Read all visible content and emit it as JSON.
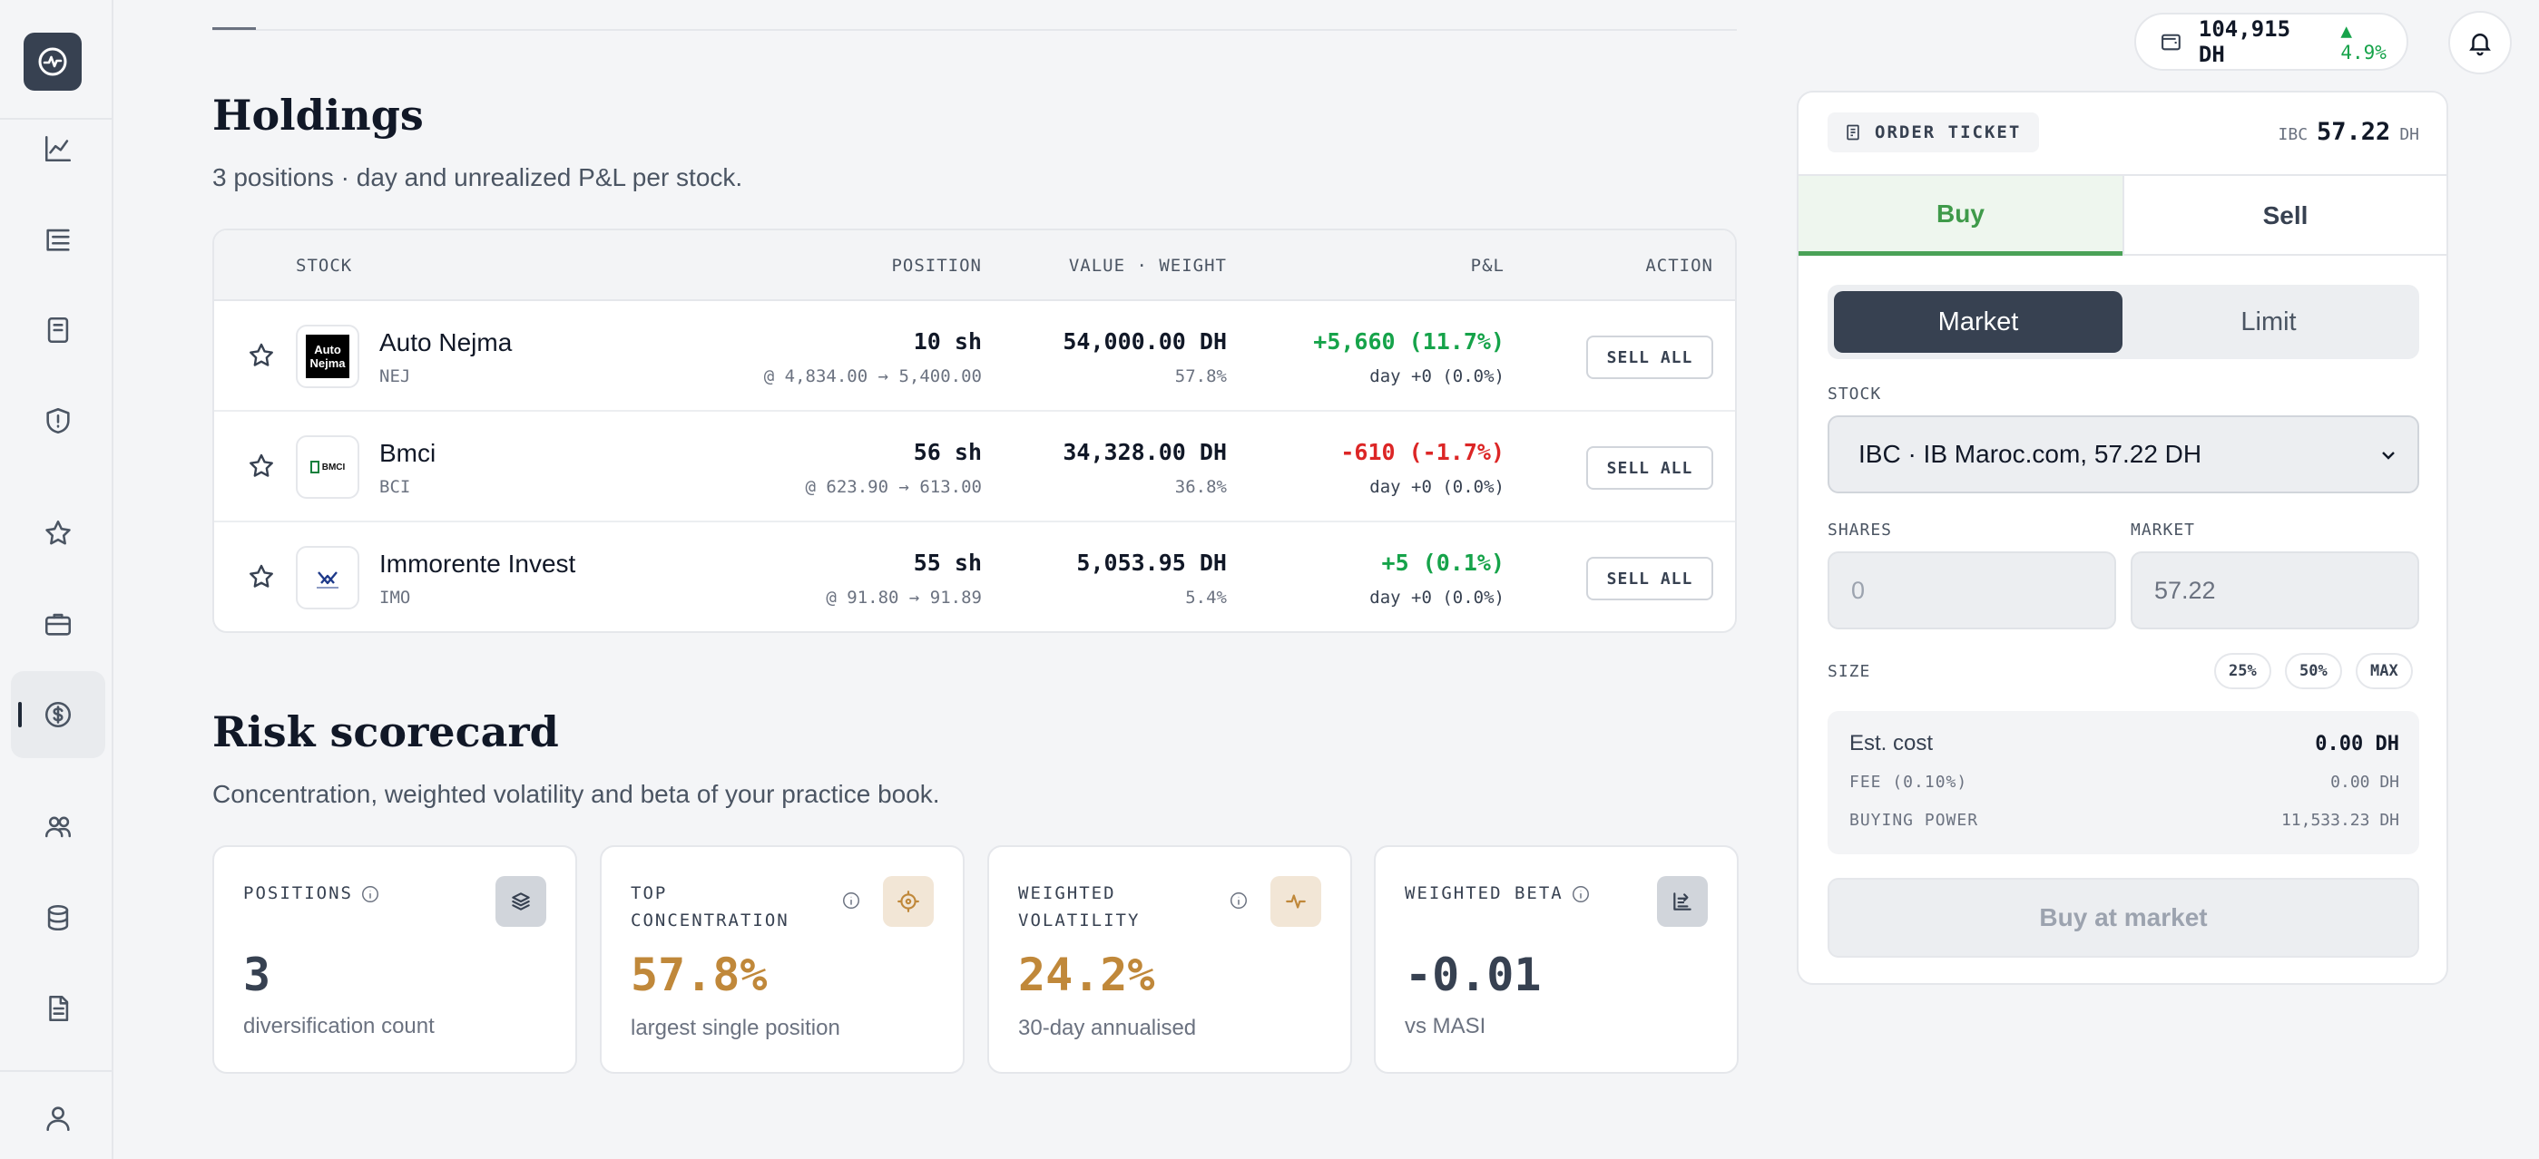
{
  "topbar": {
    "wallet_amount": "104,915 DH",
    "wallet_change": "▲ 4.9%"
  },
  "sidebar": {
    "items": [
      {
        "icon": "chart-line-icon"
      },
      {
        "icon": "list-tree-icon"
      },
      {
        "icon": "document-icon"
      },
      {
        "icon": "shield-alert-icon"
      },
      {
        "icon": "star-icon"
      },
      {
        "icon": "briefcase-icon"
      },
      {
        "icon": "dollar-circle-icon",
        "active": true
      },
      {
        "icon": "users-icon"
      },
      {
        "icon": "database-icon"
      },
      {
        "icon": "file-text-icon"
      },
      {
        "icon": "user-icon"
      }
    ]
  },
  "holdings": {
    "title": "Holdings",
    "subtitle": "3 positions · day and unrealized P&L per stock.",
    "columns": {
      "stock": "STOCK",
      "position": "POSITION",
      "value": "VALUE · WEIGHT",
      "pnl": "P&L",
      "action": "ACTION"
    },
    "rows": [
      {
        "name": "Auto Nejma",
        "ticker": "NEJ",
        "logo_text_1": "Auto",
        "logo_text_2": "Nejma",
        "shares": "10 sh",
        "price_detail": "@ 4,834.00 → 5,400.00",
        "value": "54,000.00 DH",
        "weight": "57.8%",
        "pnl": "+5,660 (11.7%)",
        "pnl_color": "#16a34a",
        "day": "day +0 (0.0%)",
        "action": "SELL ALL"
      },
      {
        "name": "Bmci",
        "ticker": "BCI",
        "logo_text_1": "BMCI",
        "shares": "56 sh",
        "price_detail": "@ 623.90 → 613.00",
        "value": "34,328.00 DH",
        "weight": "36.8%",
        "pnl": "-610 (-1.7%)",
        "pnl_color": "#dc2626",
        "day": "day +0 (0.0%)",
        "action": "SELL ALL"
      },
      {
        "name": "Immorente Invest",
        "ticker": "IMO",
        "shares": "55 sh",
        "price_detail": "@ 91.80 → 91.89",
        "value": "5,053.95 DH",
        "weight": "5.4%",
        "pnl": "+5 (0.1%)",
        "pnl_color": "#16a34a",
        "day": "day +0 (0.0%)",
        "action": "SELL ALL"
      }
    ]
  },
  "risk": {
    "title": "Risk scorecard",
    "subtitle": "Concentration, weighted volatility and beta of your practice book.",
    "cards": [
      {
        "label_1": "POSITIONS",
        "label_2": "",
        "value": "3",
        "caption": "diversification count",
        "value_color": "#374151",
        "badge_bg": "#d1d5db",
        "badge_stroke": "#374151",
        "icon": "layers-icon"
      },
      {
        "label_1": "TOP",
        "label_2": "CONCENTRATION",
        "value": "57.8%",
        "caption": "largest single position",
        "value_color": "#c0883a",
        "badge_bg": "#f2e6d6",
        "badge_stroke": "#c0883a",
        "icon": "target-icon"
      },
      {
        "label_1": "WEIGHTED",
        "label_2": "VOLATILITY",
        "value": "24.2%",
        "caption": "30-day annualised",
        "value_color": "#c0883a",
        "badge_bg": "#f2e6d6",
        "badge_stroke": "#c0883a",
        "icon": "pulse-icon"
      },
      {
        "label_1": "WEIGHTED BETA",
        "label_2": "",
        "value": "-0.01",
        "caption": "vs MASI",
        "value_color": "#374151",
        "badge_bg": "#d1d5db",
        "badge_stroke": "#374151",
        "icon": "chart-bars-icon"
      }
    ]
  },
  "ticket": {
    "tag": "ORDER TICKET",
    "quote_ticker": "IBC",
    "quote_price": "57.22",
    "quote_unit": "DH",
    "tabs": {
      "buy": "Buy",
      "sell": "Sell"
    },
    "order_types": {
      "market": "Market",
      "limit": "Limit"
    },
    "stock_label": "STOCK",
    "stock_value": "IBC · IB Maroc.com, 57.22 DH",
    "shares_label": "SHARES",
    "shares_placeholder": "0",
    "market_label": "MARKET",
    "market_value": "57.22",
    "size_label": "SIZE",
    "size_options": [
      "25%",
      "50%",
      "MAX"
    ],
    "est_cost_label": "Est. cost",
    "est_cost_value": "0.00 DH",
    "fee_label": "FEE (0.10%)",
    "fee_value": "0.00 DH",
    "buying_power_label": "BUYING POWER",
    "buying_power_value": "11,533.23 DH",
    "submit_label": "Buy at market"
  }
}
